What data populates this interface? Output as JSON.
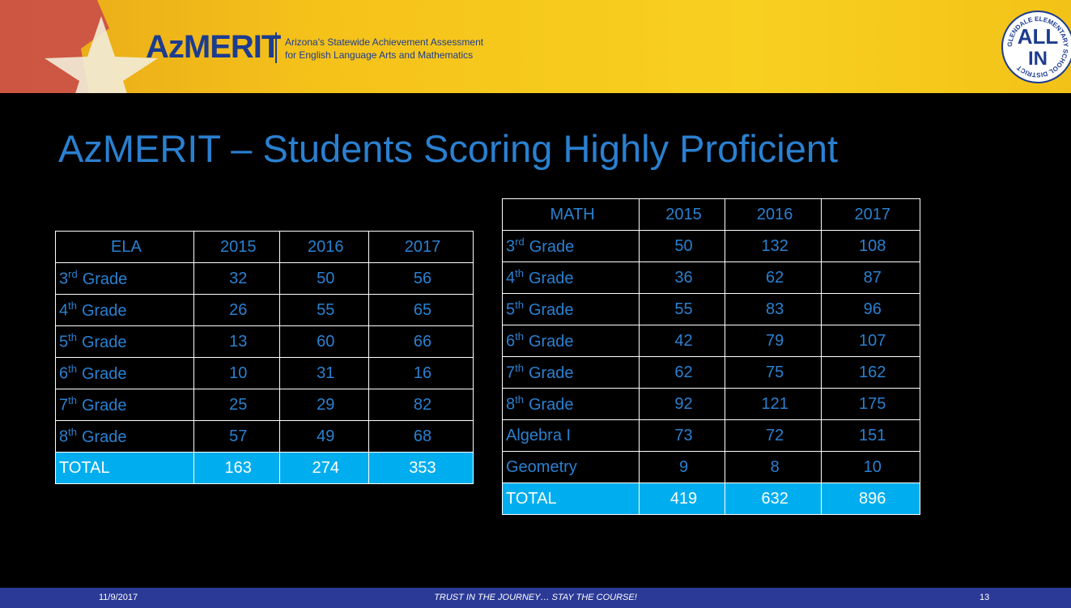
{
  "header": {
    "brand": "AzMERIT",
    "tagline_1": "Arizona's Statewide Achievement Assessment",
    "tagline_2": "for English Language Arts and Mathematics"
  },
  "district_logo": {
    "line1": "ALL",
    "line2": "IN",
    "ring": "GLENDALE ELEMENTARY SCHOOL DISTRICT"
  },
  "title": "AzMERIT – Students Scoring Highly Proficient",
  "tables": [
    {
      "columns": [
        "ELA",
        "2015",
        "2016",
        "2017"
      ],
      "rows": [
        [
          {
            "n": "3",
            "sup": "rd",
            "rest": "Grade"
          },
          32,
          50,
          56
        ],
        [
          {
            "n": "4",
            "sup": "th",
            "rest": "Grade"
          },
          26,
          55,
          65
        ],
        [
          {
            "n": "5",
            "sup": "th",
            "rest": "Grade"
          },
          13,
          60,
          66
        ],
        [
          {
            "n": "6",
            "sup": "th",
            "rest": "Grade"
          },
          10,
          31,
          16
        ],
        [
          {
            "n": "7",
            "sup": "th",
            "rest": "Grade"
          },
          25,
          29,
          82
        ],
        [
          {
            "n": "8",
            "sup": "th",
            "rest": "Grade"
          },
          57,
          49,
          68
        ]
      ],
      "total": [
        "TOTAL",
        163,
        274,
        353
      ]
    },
    {
      "columns": [
        "MATH",
        "2015",
        "2016",
        "2017"
      ],
      "rows": [
        [
          {
            "n": "3",
            "sup": "rd",
            "rest": "Grade"
          },
          50,
          132,
          108
        ],
        [
          {
            "n": "4",
            "sup": "th",
            "rest": "Grade"
          },
          36,
          62,
          87
        ],
        [
          {
            "n": "5",
            "sup": "th",
            "rest": "Grade"
          },
          55,
          83,
          96
        ],
        [
          {
            "n": "6",
            "sup": "th",
            "rest": "Grade"
          },
          42,
          79,
          107
        ],
        [
          {
            "n": "7",
            "sup": "th",
            "rest": "Grade"
          },
          62,
          75,
          162
        ],
        [
          {
            "n": "8",
            "sup": "th",
            "rest": "Grade"
          },
          92,
          121,
          175
        ],
        [
          "Algebra I",
          73,
          72,
          151
        ],
        [
          "Geometry",
          9,
          8,
          10
        ]
      ],
      "total": [
        "TOTAL",
        419,
        632,
        896
      ]
    }
  ],
  "footer": {
    "date": "11/9/2017",
    "motto": "TRUST IN THE JOURNEY… STAY THE COURSE!",
    "page": "13"
  }
}
